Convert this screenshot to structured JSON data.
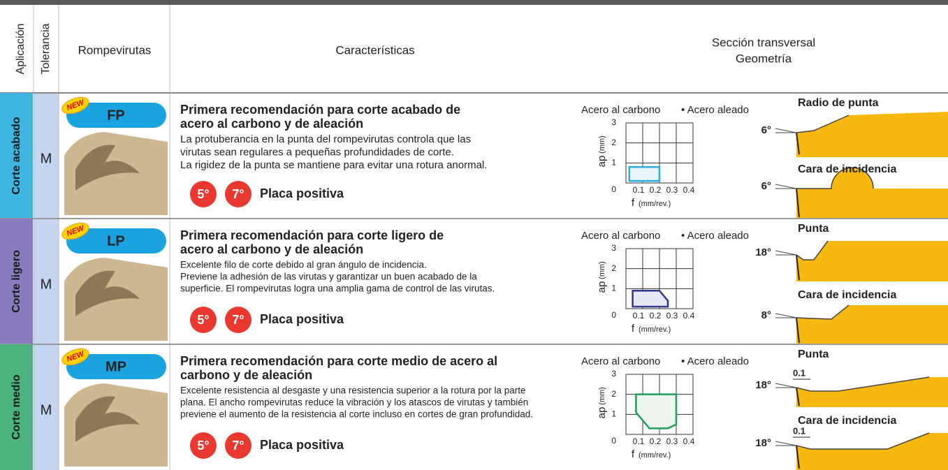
{
  "header": {
    "application": "Aplicación",
    "tolerance": "Tolerancia",
    "chipbreaker": "Rompevirutas",
    "features": "Características",
    "section": "Sección transversal",
    "geometry": "Geometría"
  },
  "rows": [
    {
      "application": "Corte acabado",
      "application_color": "#3fb6e0",
      "tolerance": "M",
      "badge": "NEW",
      "chipbreaker": "FP",
      "title": [
        "Primera recomendación para corte acabado de",
        "acero al carbono y de aleación"
      ],
      "description": [
        "La protuberancia en la punta del rompevirutas controla que las",
        "virutas sean regulares a pequeñas profundidades de corte.",
        "La rigidez de la punta se mantiene para evitar una rotura anormal."
      ],
      "angles": [
        "5°",
        "7°"
      ],
      "insert_type": "Placa positiva",
      "chart": {
        "legend": [
          "Acero al carbono",
          "• Acero aleado"
        ],
        "ylabel": "ap",
        "ylabel_unit": "(mm)",
        "xlabel": "f",
        "xlabel_unit": "(mm/rev.)",
        "xlim": [
          0,
          0.4
        ],
        "ylim": [
          0,
          3
        ],
        "xticks": [
          0.1,
          0.2,
          0.3,
          0.4
        ],
        "yticks": [
          0,
          1,
          2,
          3
        ],
        "region_color": "#29abe2",
        "region_fill": "#e8f6fc",
        "region_f": [
          0.02,
          0.2,
          0.2,
          0.02
        ],
        "region_ap": [
          0.1,
          0.1,
          0.8,
          0.8
        ]
      },
      "geometry": [
        {
          "label": "Radio de punta",
          "angle": "6°"
        },
        {
          "label": "Cara de incidencia",
          "angle": "6°"
        }
      ]
    },
    {
      "application": "Corte ligero",
      "application_color": "#8a7bbf",
      "tolerance": "M",
      "badge": "NEW",
      "chipbreaker": "LP",
      "title": [
        "Primera recomendación para corte ligero de",
        "acero al carbono y de aleación"
      ],
      "description": [
        "Excelente filo de corte debido al gran ángulo de incidencia.",
        "Previene la adhesión de las virutas y garantizar un buen acabado de la",
        "superficie. El rompevirutas logra una amplia gama de control de las virutas."
      ],
      "angles": [
        "5°",
        "7°"
      ],
      "insert_type": "Placa positiva",
      "chart": {
        "legend": [
          "Acero al carbono",
          "• Acero aleado"
        ],
        "ylabel": "ap",
        "ylabel_unit": "(mm)",
        "xlabel": "f",
        "xlabel_unit": "(mm/rev.)",
        "xlim": [
          0,
          0.4
        ],
        "ylim": [
          0,
          3
        ],
        "xticks": [
          0.1,
          0.2,
          0.3,
          0.4
        ],
        "yticks": [
          0,
          1,
          2,
          3
        ],
        "region_color": "#2e3a8c",
        "region_fill": "#e6e8f4",
        "region_f": [
          0.04,
          0.25,
          0.25,
          0.2,
          0.04
        ],
        "region_ap": [
          0.1,
          0.1,
          0.4,
          0.9,
          0.9
        ]
      },
      "geometry": [
        {
          "label": "Punta",
          "angle": "18°"
        },
        {
          "label": "Cara de incidencia",
          "angle": "8°"
        }
      ]
    },
    {
      "application": "Corte medio",
      "application_color": "#4cb380",
      "tolerance": "M",
      "badge": "NEW",
      "chipbreaker": "MP",
      "title": [
        "Primera recomendación para corte medio de acero al",
        "carbono y de aleación"
      ],
      "description": [
        "Excelente resistencia al desgaste y una resistencia superior a la rotura por la parte",
        "plana. El ancho rompevirutas reduce la vibración y los atascos de virutas y también",
        "previene el aumento de la resistencia al corte incluso en cortes de gran profundidad."
      ],
      "angles": [
        "5°",
        "7°"
      ],
      "insert_type": "Placa positiva",
      "chart": {
        "legend": [
          "Acero al carbono",
          "• Acero aleado"
        ],
        "ylabel": "ap",
        "ylabel_unit": "(mm)",
        "xlabel": "f",
        "xlabel_unit": "(mm/rev.)",
        "xlim": [
          0,
          0.4
        ],
        "ylim": [
          0,
          3
        ],
        "xticks": [
          0.1,
          0.2,
          0.3,
          0.4
        ],
        "yticks": [
          0,
          1,
          2,
          3
        ],
        "region_color": "#1f9e5a",
        "region_fill": "#eef6ef",
        "region_f": [
          0.06,
          0.3,
          0.3,
          0.25,
          0.14,
          0.06
        ],
        "region_ap": [
          2,
          2,
          0.5,
          0.3,
          0.3,
          1.1
        ]
      },
      "geometry": [
        {
          "label": "Punta",
          "angle": "18°",
          "dim": 0.1
        },
        {
          "label": "Cara de incidencia",
          "angle": "18°",
          "dim": 0.1
        }
      ]
    }
  ]
}
